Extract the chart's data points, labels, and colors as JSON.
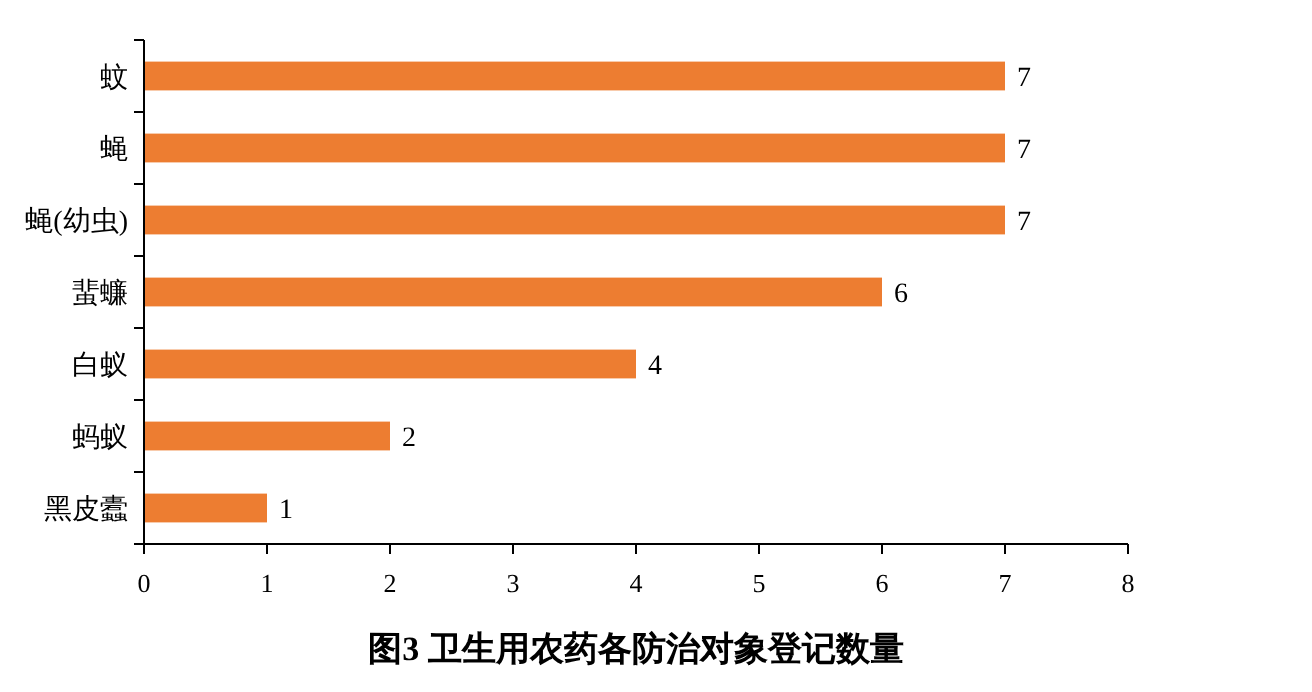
{
  "chart_data": {
    "type": "bar",
    "orientation": "horizontal",
    "title": "图3 卫生用农药各防治对象登记数量",
    "categories": [
      "蚊",
      "蝇",
      "蝇(幼虫)",
      "蜚蠊",
      "白蚁",
      "蚂蚁",
      "黑皮蠹"
    ],
    "values": [
      7,
      7,
      7,
      6,
      4,
      2,
      1
    ],
    "color": "#ed7d31",
    "xlim": [
      0,
      8
    ],
    "xticks": [
      0,
      1,
      2,
      3,
      4,
      5,
      6,
      7,
      8
    ],
    "data_labels": true,
    "grid": false
  }
}
